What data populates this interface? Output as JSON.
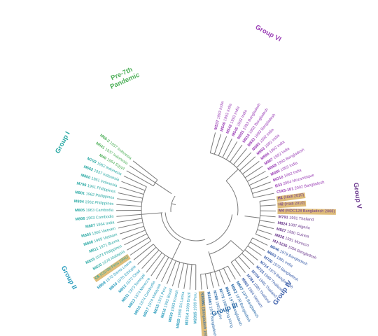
{
  "colors": {
    "group1": "#2aa9a4",
    "pre7": "#4fb05a",
    "group6": "#9b3fb6",
    "group5": "#6d3b8f",
    "group4": "#3c5faa",
    "group3": "#2a6aa8",
    "group2": "#2a9dbd",
    "branch": "#7a7a7a",
    "highlight": "#d9b263"
  },
  "groups": {
    "pre7": "Pre-7th\nPandemic",
    "group1": "Group I",
    "group2": "Group II",
    "group3": "Group III",
    "group4": "Group IV",
    "group5": "Group V",
    "group6": "Group VI"
  },
  "leaves": [
    {
      "id": "M537",
      "text": "1993 India",
      "group": "group6"
    },
    {
      "id": "M540",
      "text": "1993 India",
      "group": "group6"
    },
    {
      "id": "M542",
      "text": "1993 India",
      "group": "group6"
    },
    {
      "id": "M545",
      "text": "1993 India",
      "group": "group6"
    },
    {
      "id": "M831",
      "text": "1993 Bangladesh",
      "group": "group6"
    },
    {
      "id": "M834",
      "text": "1993 Bangladesh",
      "group": "group6"
    },
    {
      "id": "M833",
      "text": "1993 Bangladesh",
      "group": "group6"
    },
    {
      "id": "M985",
      "text": "1992 India",
      "group": "group6"
    },
    {
      "id": "M983",
      "text": "1992 India",
      "group": "group6"
    },
    {
      "id": "M986",
      "text": "1992 India",
      "group": "group6"
    },
    {
      "id": "M987",
      "text": "1992 India",
      "group": "group6"
    },
    {
      "id": "M988",
      "text": "1993 Bangladesh",
      "group": "group6"
    },
    {
      "id": "M989",
      "text": "1993 India",
      "group": "group6"
    },
    {
      "id": "MO10",
      "text": "1992 India",
      "group": "group6"
    },
    {
      "id": "B33",
      "text": "2004 Mozambique",
      "group": "group6"
    },
    {
      "id": "CIRS-101",
      "text": "2002 Bangladesh",
      "group": "group6"
    },
    {
      "id": "H1",
      "text": "(Haiti 2010)",
      "group": "group5",
      "hl": true
    },
    {
      "id": "H2",
      "text": "(Haiti 2010)",
      "group": "group5",
      "hl": true
    },
    {
      "id": "M4",
      "text": "(MDC128 Bangladesh 2008)",
      "group": "group5",
      "hl": true
    },
    {
      "id": "M791",
      "text": "1991 Thailand",
      "group": "group5"
    },
    {
      "id": "M824",
      "text": "1987 Algeria",
      "group": "group5"
    },
    {
      "id": "M827",
      "text": "1990 Guinea",
      "group": "group5"
    },
    {
      "id": "M828",
      "text": "1991 Morocco",
      "group": "group5"
    },
    {
      "id": "MJ-1236",
      "text": "1994 Bangladesh",
      "group": "group5"
    },
    {
      "id": "M646",
      "text": "1979 Bangladesh",
      "group": "group4"
    },
    {
      "id": "M653",
      "text": "1981 India",
      "group": "group4"
    },
    {
      "id": "M720",
      "text": "1979 Bangladesh",
      "group": "group4"
    },
    {
      "id": "M714",
      "text": "1979 Bangladesh",
      "group": "group4"
    },
    {
      "id": "M723",
      "text": "1985 Thailand",
      "group": "group4"
    },
    {
      "id": "M740",
      "text": "1985 Thailand",
      "group": "group4"
    },
    {
      "id": "M784",
      "text": "1985 Thailand",
      "group": "group4"
    },
    {
      "id": "M803",
      "text": "1984 Vietnam",
      "group": "group4"
    },
    {
      "id": "M647",
      "text": "1976 Bangladesh",
      "group": "group3"
    },
    {
      "id": "M652",
      "text": "1978 Bangladesh",
      "group": "group3"
    },
    {
      "id": "M655",
      "text": "1978 Bangladesh",
      "group": "group3"
    },
    {
      "id": "M773",
      "text": "1980 Hong Kong",
      "group": "group3"
    },
    {
      "id": "M789",
      "text": "1983 Zaire",
      "group": "group3"
    },
    {
      "id": "N16961",
      "text": "1971 Bangladesh",
      "group": "group3"
    },
    {
      "id": "N16961",
      "text": "(Bangladesh 1971)",
      "group": "group3",
      "hl": true
    },
    {
      "id": "M2315",
      "text": "1999 Peru",
      "group": "group2"
    },
    {
      "id": "M2314",
      "text": "1999 Brazil",
      "group": "group2"
    },
    {
      "id": "M829",
      "text": "1998 Sri Lanka",
      "group": "group2"
    },
    {
      "id": "M830",
      "text": "1993 Kuwait",
      "group": "group2"
    },
    {
      "id": "M816",
      "text": "1993 Brazil",
      "group": "group2"
    },
    {
      "id": "M815",
      "text": "1971 Peru",
      "group": "group2"
    },
    {
      "id": "M817",
      "text": "1974 Malaysia",
      "group": "group2"
    },
    {
      "id": "M815",
      "text": "1974 Cambodia",
      "group": "group2"
    },
    {
      "id": "M813",
      "text": "1974 Morocco",
      "group": "group2"
    },
    {
      "id": "M811",
      "text": "1973 Senegal",
      "group": "group2"
    },
    {
      "id": "M812",
      "text": "1972 Chad",
      "group": "group2"
    },
    {
      "id": "M810",
      "text": "1970 Ethiopia",
      "group": "group2"
    },
    {
      "id": "M809",
      "text": "1970 Sierra Leone",
      "group": "group2"
    },
    {
      "id": "C6",
      "text": "(C6706 Peru 1991)",
      "group": "group1",
      "hl": true
    },
    {
      "id": "M820",
      "text": "1978 Malaysia",
      "group": "group1"
    },
    {
      "id": "M815",
      "text": "1973 Philippines",
      "group": "group1"
    },
    {
      "id": "M811",
      "text": "1971 Burma",
      "group": "group1"
    },
    {
      "id": "M808",
      "text": "1969 Vietnam",
      "group": "group1"
    },
    {
      "id": "M803",
      "text": "1966 Vietnam",
      "group": "group1"
    },
    {
      "id": "M807",
      "text": "1964 India",
      "group": "group1"
    },
    {
      "id": "M806",
      "text": "1963 Cambodia",
      "group": "group1"
    },
    {
      "id": "M805",
      "text": "1963 Cambodia",
      "group": "group1"
    },
    {
      "id": "M804",
      "text": "1962 Philippines",
      "group": "group1"
    },
    {
      "id": "M801",
      "text": "1962 Philippines",
      "group": "group1"
    },
    {
      "id": "M799",
      "text": "1961 Philippines",
      "group": "group1"
    },
    {
      "id": "M800",
      "text": "1961 Indonesia",
      "group": "group1"
    },
    {
      "id": "M662",
      "text": "1937 Indonesia",
      "group": "group1"
    },
    {
      "id": "M793",
      "text": "1962 Indonesia",
      "group": "group1"
    },
    {
      "id": "M40",
      "text": "1954 Egypt",
      "group": "pre7"
    },
    {
      "id": "M541",
      "text": "1937 Indonesia",
      "group": "pre7"
    },
    {
      "id": "M66-2",
      "text": "1937 Indonesia",
      "group": "pre7"
    }
  ]
}
